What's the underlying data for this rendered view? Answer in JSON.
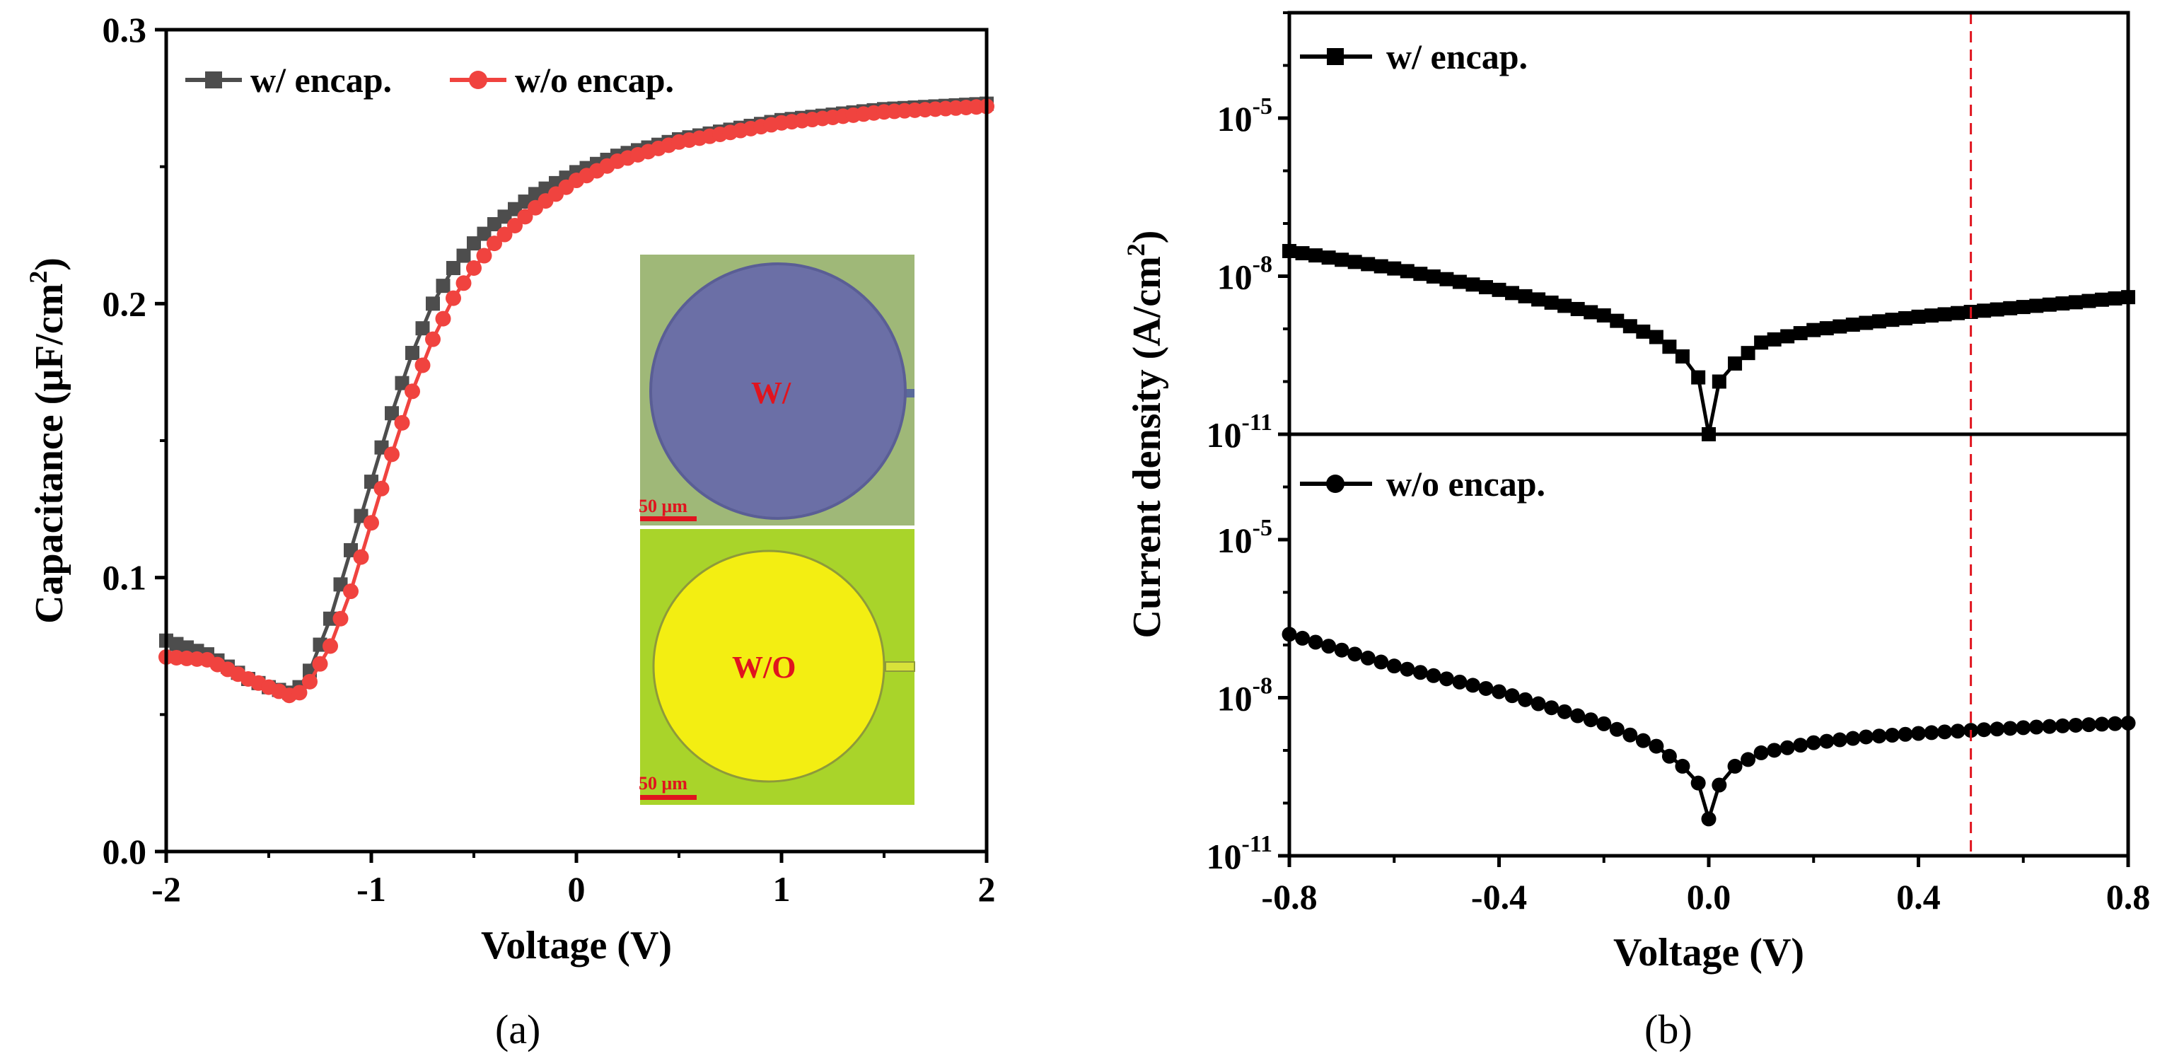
{
  "chart_data": [
    {
      "panel": "(a)",
      "type": "line",
      "xlabel": "Voltage (V)",
      "ylabel": "Capacitance (μF/cm²)",
      "ylabel_main": "Capacitance (μF/cm",
      "ylabel_sup": "2",
      "ylabel_tail": ")",
      "xlim": [
        -2,
        2
      ],
      "ylim": [
        0.0,
        0.3
      ],
      "xticks": [
        "-2",
        "-1",
        "0",
        "1",
        "2"
      ],
      "yticks": [
        "0.0",
        "0.1",
        "0.2",
        "0.3"
      ],
      "legend_position": "top-left",
      "series": [
        {
          "name": "w/ encap.",
          "color": "#4d4d4d",
          "marker": "square",
          "x": [
            -2.0,
            -1.8,
            -1.6,
            -1.5,
            -1.4,
            -1.35,
            -1.3,
            -1.2,
            -1.1,
            -1.0,
            -0.9,
            -0.8,
            -0.7,
            -0.6,
            -0.5,
            -0.4,
            -0.2,
            0.0,
            0.2,
            0.5,
            1.0,
            1.5,
            2.0
          ],
          "y": [
            0.077,
            0.072,
            0.063,
            0.06,
            0.058,
            0.06,
            0.066,
            0.085,
            0.11,
            0.135,
            0.16,
            0.182,
            0.2,
            0.213,
            0.222,
            0.229,
            0.24,
            0.248,
            0.254,
            0.26,
            0.267,
            0.271,
            0.273
          ]
        },
        {
          "name": "w/o encap.",
          "color": "#f0433f",
          "marker": "circle",
          "x": [
            -2.0,
            -1.8,
            -1.6,
            -1.5,
            -1.4,
            -1.35,
            -1.3,
            -1.2,
            -1.1,
            -1.0,
            -0.9,
            -0.8,
            -0.7,
            -0.6,
            -0.5,
            -0.4,
            -0.2,
            0.0,
            0.2,
            0.5,
            1.0,
            1.5,
            2.0
          ],
          "y": [
            0.071,
            0.07,
            0.063,
            0.06,
            0.057,
            0.058,
            0.062,
            0.075,
            0.095,
            0.12,
            0.145,
            0.168,
            0.187,
            0.202,
            0.213,
            0.222,
            0.235,
            0.245,
            0.252,
            0.259,
            0.266,
            0.27,
            0.272
          ]
        }
      ],
      "inset": {
        "top_label": "W/",
        "bottom_label": "W/O",
        "scale_bar_top": "50 μm",
        "scale_bar_bottom": "50 μm"
      }
    },
    {
      "panel": "(b)",
      "type": "line",
      "scale": "log",
      "xlabel": "Voltage (V)",
      "ylabel": "Current density (A/cm²)",
      "ylabel_main": "Current density (A/cm",
      "ylabel_sup": "2",
      "ylabel_tail": ")",
      "xlim": [
        -0.8,
        0.8
      ],
      "ylim_exponent": [
        -11,
        -3
      ],
      "xticks": [
        "-0.8",
        "-0.4",
        "0.0",
        "0.4",
        "0.8"
      ],
      "ytick_base": "10",
      "ytick_exponents": [
        "-11",
        "-8",
        "-5"
      ],
      "reference_line_x": 0.5,
      "reference_line_color": "#e0141e",
      "legend_position": "top-left",
      "subplots": [
        {
          "name": "w/ encap.",
          "marker": "square",
          "color": "#000000",
          "x": [
            -0.8,
            -0.6,
            -0.4,
            -0.2,
            -0.1,
            -0.05,
            -0.02,
            0.0,
            0.02,
            0.05,
            0.1,
            0.2,
            0.3,
            0.4,
            0.5,
            0.6,
            0.7,
            0.8
          ],
          "y": [
            3e-08,
            1.4e-08,
            5.5e-09,
            1.8e-09,
            7e-10,
            3e-10,
            1.2e-10,
            1e-11,
            1e-10,
            2.2e-10,
            5.5e-10,
            9.5e-10,
            1.3e-09,
            1.7e-09,
            2.1e-09,
            2.6e-09,
            3.2e-09,
            4e-09
          ]
        },
        {
          "name": "w/o encap.",
          "marker": "circle",
          "color": "#000000",
          "x": [
            -0.8,
            -0.6,
            -0.4,
            -0.2,
            -0.1,
            -0.05,
            -0.02,
            0.0,
            0.02,
            0.05,
            0.1,
            0.2,
            0.3,
            0.4,
            0.5,
            0.6,
            0.7,
            0.8
          ],
          "y": [
            1.6e-07,
            4e-08,
            1.3e-08,
            3.2e-09,
            1.2e-09,
            5e-10,
            2.4e-10,
            5e-11,
            2.2e-10,
            5e-10,
            9e-10,
            1.4e-09,
            1.8e-09,
            2.1e-09,
            2.4e-09,
            2.7e-09,
            3e-09,
            3.3e-09
          ]
        }
      ]
    }
  ]
}
